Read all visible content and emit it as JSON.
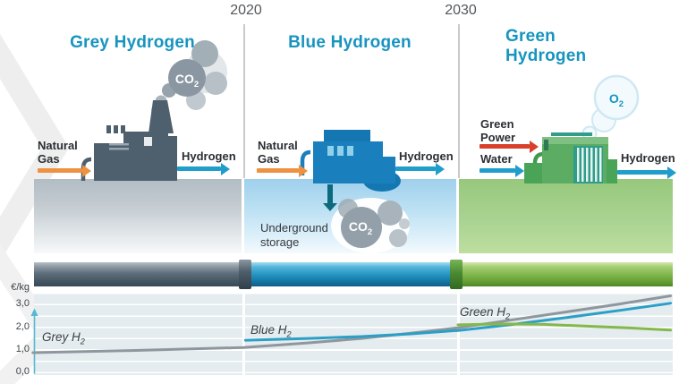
{
  "titles": {
    "grey": "Grey Hydrogen",
    "blue": "Blue Hydrogen",
    "green": "Green Hydrogen"
  },
  "timeline": {
    "y2020": "2020",
    "y2030": "2030"
  },
  "grey_section": {
    "input": "Natural\nGas",
    "output": "Hydrogen",
    "emission_main": "CO",
    "emission_sub": "2"
  },
  "blue_section": {
    "input": "Natural\nGas",
    "output": "Hydrogen",
    "storage": "Underground\nstorage",
    "emission_main": "CO",
    "emission_sub": "2"
  },
  "green_section": {
    "input1": "Green\nPower",
    "input2": "Water",
    "output": "Hydrogen",
    "emission_main": "O",
    "emission_sub": "2"
  },
  "chart": {
    "unit": "€/kg",
    "yticks": [
      "3,0",
      "2,0",
      "1,0",
      "0,0"
    ],
    "labels": {
      "grey_main": "Grey H",
      "grey_sub": "2",
      "blue_main": "Blue H",
      "blue_sub": "2",
      "green_main": "Green H",
      "green_sub": "2"
    }
  },
  "colors": {
    "title_teal": "#1794bf",
    "natural_gas_arrow": "#ee9140",
    "hydrogen_arrow": "#1f9dcb",
    "green_power_arrow": "#d8402c",
    "co2_storage_arrow": "#0c6a7f"
  },
  "chart_data": {
    "type": "line",
    "ylabel": "€/kg",
    "ylim": [
      0.0,
      3.5
    ],
    "ytick_values": [
      3.0,
      2.0,
      1.0,
      0.0
    ],
    "x_ticks": [
      2020,
      2030
    ],
    "grid": true,
    "series": [
      {
        "name": "Grey H2",
        "color": "#8f979e",
        "points": [
          [
            2010.2,
            0.87
          ],
          [
            2015.0,
            0.97
          ],
          [
            2020.0,
            1.1
          ],
          [
            2023.0,
            1.3
          ],
          [
            2025.5,
            1.5
          ],
          [
            2027.8,
            1.73
          ],
          [
            2030.0,
            1.97
          ],
          [
            2032.4,
            2.3
          ],
          [
            2034.9,
            2.65
          ],
          [
            2037.4,
            3.0
          ],
          [
            2039.9,
            3.38
          ]
        ]
      },
      {
        "name": "Blue H2",
        "color": "#2b9fc6",
        "points": [
          [
            2020.1,
            1.42
          ],
          [
            2023.0,
            1.5
          ],
          [
            2025.5,
            1.58
          ],
          [
            2027.8,
            1.7
          ],
          [
            2030.0,
            1.85
          ],
          [
            2032.4,
            2.1
          ],
          [
            2034.9,
            2.4
          ],
          [
            2037.4,
            2.72
          ],
          [
            2039.9,
            3.05
          ]
        ]
      },
      {
        "name": "Green H2",
        "color": "#85b84a",
        "points": [
          [
            2030.0,
            2.1
          ],
          [
            2032.0,
            2.14
          ],
          [
            2034.0,
            2.12
          ],
          [
            2036.0,
            2.04
          ],
          [
            2038.0,
            1.96
          ],
          [
            2039.9,
            1.87
          ]
        ]
      }
    ]
  }
}
